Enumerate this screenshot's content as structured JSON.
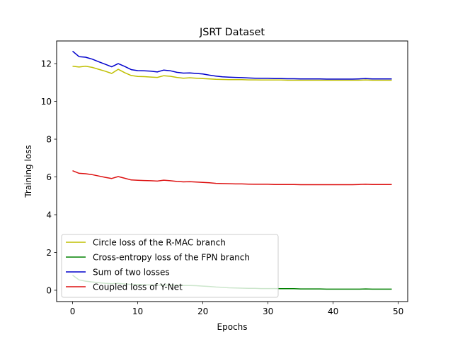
{
  "chart_data": {
    "type": "line",
    "title": "JSRT Dataset",
    "xlabel": "Epochs",
    "ylabel": "Training loss",
    "xlim": [
      -2.45,
      51.45
    ],
    "ylim": [
      -0.6,
      13.2
    ],
    "xticks": [
      0,
      10,
      20,
      30,
      40,
      50
    ],
    "yticks": [
      0,
      2,
      4,
      6,
      8,
      10,
      12
    ],
    "grid": false,
    "legend_position": "lower-left",
    "x": [
      0,
      1,
      2,
      3,
      4,
      5,
      6,
      7,
      8,
      9,
      10,
      11,
      12,
      13,
      14,
      15,
      16,
      17,
      18,
      19,
      20,
      21,
      22,
      23,
      24,
      25,
      26,
      27,
      28,
      29,
      30,
      31,
      32,
      33,
      34,
      35,
      36,
      37,
      38,
      39,
      40,
      41,
      42,
      43,
      44,
      45,
      46,
      47,
      48,
      49
    ],
    "series": [
      {
        "name": "Circle loss of the R-MAC branch",
        "color": "#bfbf00",
        "values": [
          11.86,
          11.82,
          11.86,
          11.8,
          11.7,
          11.6,
          11.48,
          11.7,
          11.52,
          11.37,
          11.32,
          11.31,
          11.29,
          11.27,
          11.36,
          11.33,
          11.27,
          11.23,
          11.25,
          11.23,
          11.21,
          11.19,
          11.17,
          11.16,
          11.15,
          11.15,
          11.15,
          11.14,
          11.14,
          11.13,
          11.13,
          11.13,
          11.13,
          11.12,
          11.12,
          11.12,
          11.12,
          11.12,
          11.12,
          11.12,
          11.12,
          11.12,
          11.12,
          11.12,
          11.12,
          11.13,
          11.12,
          11.12,
          11.12,
          11.12
        ]
      },
      {
        "name": "Cross-entropy loss of the FPN branch",
        "color": "#008000",
        "values": [
          0.8,
          0.55,
          0.48,
          0.44,
          0.4,
          0.37,
          0.35,
          0.36,
          0.33,
          0.31,
          0.3,
          0.29,
          0.28,
          0.27,
          0.28,
          0.27,
          0.26,
          0.25,
          0.25,
          0.24,
          0.22,
          0.2,
          0.17,
          0.15,
          0.13,
          0.12,
          0.11,
          0.1,
          0.1,
          0.09,
          0.09,
          0.09,
          0.08,
          0.08,
          0.08,
          0.07,
          0.07,
          0.07,
          0.07,
          0.06,
          0.06,
          0.06,
          0.06,
          0.06,
          0.06,
          0.07,
          0.06,
          0.06,
          0.06,
          0.06
        ]
      },
      {
        "name": "Sum of two losses",
        "color": "#0000cc",
        "values": [
          12.66,
          12.37,
          12.34,
          12.24,
          12.1,
          11.97,
          11.83,
          12.0,
          11.85,
          11.68,
          11.63,
          11.62,
          11.6,
          11.56,
          11.66,
          11.62,
          11.54,
          11.5,
          11.51,
          11.48,
          11.45,
          11.39,
          11.34,
          11.3,
          11.28,
          11.27,
          11.26,
          11.24,
          11.23,
          11.22,
          11.22,
          11.21,
          11.21,
          11.2,
          11.2,
          11.19,
          11.19,
          11.19,
          11.19,
          11.18,
          11.18,
          11.18,
          11.18,
          11.18,
          11.19,
          11.21,
          11.19,
          11.19,
          11.19,
          11.19
        ]
      },
      {
        "name": "Coupled loss of Y-Net",
        "color": "#dd1111",
        "values": [
          6.33,
          6.19,
          6.17,
          6.12,
          6.05,
          5.98,
          5.92,
          6.02,
          5.93,
          5.84,
          5.82,
          5.81,
          5.8,
          5.78,
          5.83,
          5.8,
          5.76,
          5.74,
          5.75,
          5.73,
          5.71,
          5.69,
          5.66,
          5.65,
          5.64,
          5.63,
          5.63,
          5.62,
          5.61,
          5.61,
          5.61,
          5.6,
          5.6,
          5.6,
          5.6,
          5.59,
          5.59,
          5.59,
          5.59,
          5.59,
          5.59,
          5.59,
          5.59,
          5.59,
          5.6,
          5.61,
          5.6,
          5.6,
          5.6,
          5.6
        ]
      }
    ]
  }
}
